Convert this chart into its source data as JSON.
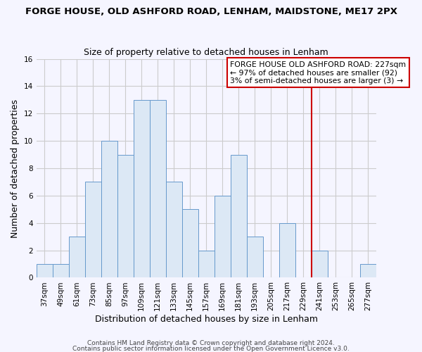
{
  "title": "FORGE HOUSE, OLD ASHFORD ROAD, LENHAM, MAIDSTONE, ME17 2PX",
  "subtitle": "Size of property relative to detached houses in Lenham",
  "xlabel": "Distribution of detached houses by size in Lenham",
  "ylabel": "Number of detached properties",
  "bar_color": "#dce8f5",
  "bar_edge_color": "#6699cc",
  "categories": [
    "37sqm",
    "49sqm",
    "61sqm",
    "73sqm",
    "85sqm",
    "97sqm",
    "109sqm",
    "121sqm",
    "133sqm",
    "145sqm",
    "157sqm",
    "169sqm",
    "181sqm",
    "193sqm",
    "205sqm",
    "217sqm",
    "229sqm",
    "241sqm",
    "253sqm",
    "265sqm",
    "277sqm"
  ],
  "values": [
    1,
    1,
    3,
    7,
    10,
    9,
    13,
    13,
    7,
    5,
    2,
    6,
    9,
    3,
    0,
    4,
    0,
    2,
    0,
    0,
    1
  ],
  "ylim": [
    0,
    16
  ],
  "yticks": [
    0,
    2,
    4,
    6,
    8,
    10,
    12,
    14,
    16
  ],
  "marker_color": "#cc0000",
  "grid_color": "#cccccc",
  "background_color": "#f5f5ff",
  "annotation_line1": "FORGE HOUSE OLD ASHFORD ROAD: 227sqm",
  "annotation_line2": "← 97% of detached houses are smaller (92)",
  "annotation_line3": "3% of semi-detached houses are larger (3) →",
  "footer1": "Contains HM Land Registry data © Crown copyright and database right 2024.",
  "footer2": "Contains public sector information licensed under the Open Government Licence v3.0.",
  "title_fontsize": 9.5,
  "subtitle_fontsize": 9,
  "axis_label_fontsize": 9,
  "tick_fontsize": 7.5,
  "annotation_fontsize": 7.8,
  "footer_fontsize": 6.5
}
